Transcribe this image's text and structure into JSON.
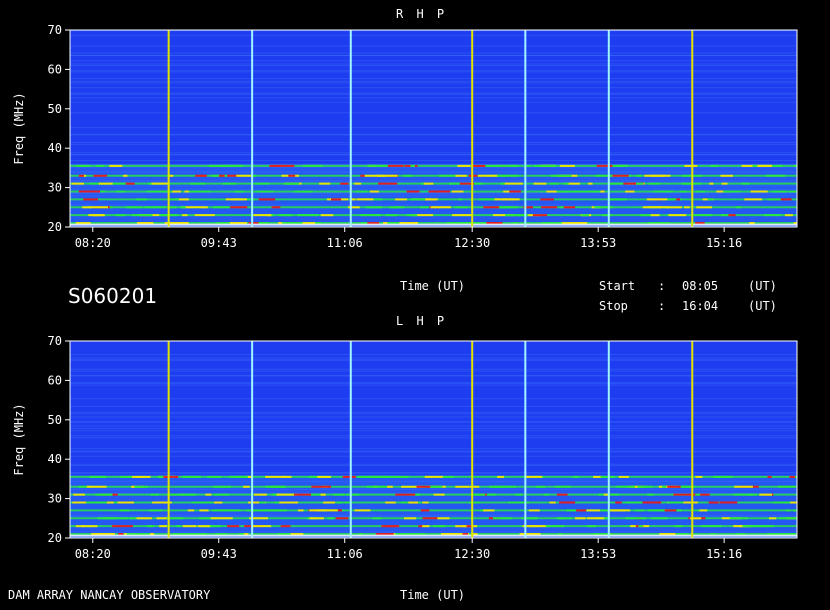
{
  "station": "S060201",
  "footer": "DAM ARRAY  NANCAY OBSERVATORY",
  "time_label": "Time (UT)",
  "start_label": "Start",
  "stop_label": "Stop",
  "colon": ":",
  "start_time": "08:05",
  "stop_time": "16:04",
  "ut": "(UT)",
  "colors": {
    "background": "#1f3df0",
    "vertical_marker_yellow": "#e2e200",
    "vertical_marker_cyan": "#9ff4ff",
    "band_green": "#28e83c",
    "band_yellow": "#e6e600",
    "band_red": "#e02020"
  },
  "chart_data": [
    {
      "type": "heatmap",
      "title": "R H P",
      "xlabel": "Time (UT)",
      "ylabel": "Freq (MHz)",
      "ylim": [
        20,
        70
      ],
      "yticks": [
        20,
        30,
        40,
        50,
        60,
        70
      ],
      "xticks": [
        "08:20",
        "09:43",
        "11:06",
        "12:30",
        "13:53",
        "15:16"
      ],
      "markers": [
        {
          "time": "09:10",
          "color": "yellow"
        },
        {
          "time": "10:05",
          "color": "cyan"
        },
        {
          "time": "11:10",
          "color": "cyan"
        },
        {
          "time": "12:30",
          "color": "yellow"
        },
        {
          "time": "13:05",
          "color": "cyan"
        },
        {
          "time": "14:00",
          "color": "cyan"
        },
        {
          "time": "14:55",
          "color": "yellow"
        }
      ],
      "emission_bands_mhz": [
        21,
        23,
        25,
        27,
        29,
        31,
        33,
        35.5
      ],
      "notes": "broadband emission strongest 20-35 MHz"
    },
    {
      "type": "heatmap",
      "title": "L H P",
      "xlabel": "Time (UT)",
      "ylabel": "Freq (MHz)",
      "ylim": [
        20,
        70
      ],
      "yticks": [
        20,
        30,
        40,
        50,
        60,
        70
      ],
      "xticks": [
        "08:20",
        "09:43",
        "11:06",
        "12:30",
        "13:53",
        "15:16"
      ],
      "markers": [
        {
          "time": "09:10",
          "color": "yellow"
        },
        {
          "time": "10:05",
          "color": "cyan"
        },
        {
          "time": "11:10",
          "color": "cyan"
        },
        {
          "time": "12:30",
          "color": "yellow"
        },
        {
          "time": "13:05",
          "color": "cyan"
        },
        {
          "time": "14:00",
          "color": "cyan"
        },
        {
          "time": "14:55",
          "color": "yellow"
        }
      ],
      "emission_bands_mhz": [
        21,
        23,
        25,
        27,
        29,
        31,
        33,
        35.5
      ],
      "notes": "broadband emission strongest 20-35 MHz"
    }
  ]
}
